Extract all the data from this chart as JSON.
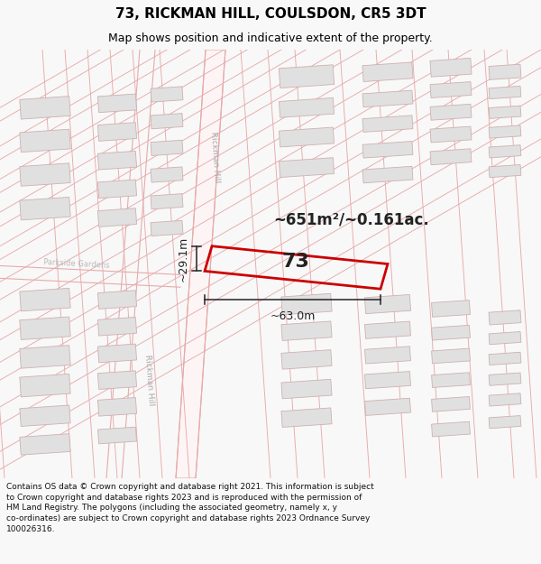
{
  "title": "73, RICKMAN HILL, COULSDON, CR5 3DT",
  "subtitle": "Map shows position and indicative extent of the property.",
  "area_text": "~651m²/~0.161ac.",
  "property_number": "73",
  "dim_width": "~63.0m",
  "dim_height": "~29.1m",
  "footer_line1": "Contains OS data © Crown copyright and database right 2021. This information is subject",
  "footer_line2": "to Crown copyright and database rights 2023 and is reproduced with the permission of",
  "footer_line3": "HM Land Registry. The polygons (including the associated geometry, namely x, y",
  "footer_line4": "co-ordinates) are subject to Crown copyright and database rights 2023 Ordnance Survey",
  "footer_line5": "100026316.",
  "bg_color": "#f8f8f8",
  "map_bg": "#ffffff",
  "road_color": "#e8aaaa",
  "road_fill": "#fdf5f5",
  "property_color": "#cc0000",
  "building_fill": "#e0e0e0",
  "building_edge": "#d0b0b0",
  "plot_edge": "#e0b0b0",
  "dim_color": "#222222",
  "label_color": "#bbbbbb",
  "title_color": "#000000",
  "footer_color": "#111111"
}
